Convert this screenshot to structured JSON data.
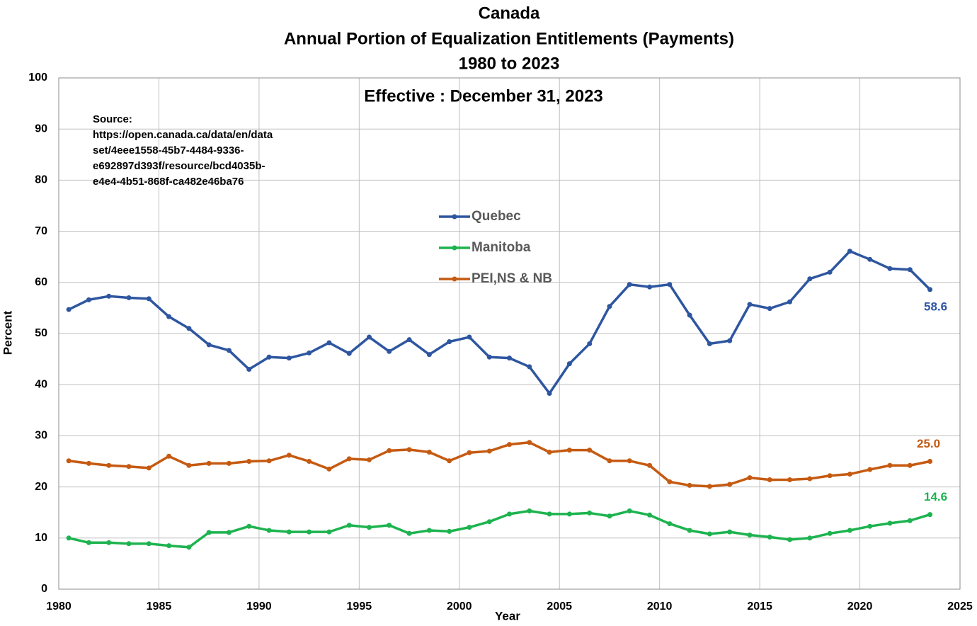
{
  "chart_data": {
    "type": "line",
    "title": [
      "Canada",
      "Annual Portion of Equalization Entitlements (Payments)",
      "1980 to 2023"
    ],
    "subtitle": "Effective : December 31, 2023",
    "source_note": [
      "Source:",
      "https://open.canada.ca/data/en/data",
      "set/4eee1558-45b7-4484-9336-",
      "e692897d393f/resource/bcd4035b-",
      "e4e4-4b51-868f-ca482e46ba76"
    ],
    "x_label": "Year",
    "y_label": "Percent",
    "x": [
      1980.5,
      1981.5,
      1982.5,
      1983.5,
      1984.5,
      1985.5,
      1986.5,
      1987.5,
      1988.5,
      1989.5,
      1990.5,
      1991.5,
      1992.5,
      1993.5,
      1994.5,
      1995.5,
      1996.5,
      1997.5,
      1998.5,
      1999.5,
      2000.5,
      2001.5,
      2002.5,
      2003.5,
      2004.5,
      2005.5,
      2006.5,
      2007.5,
      2008.5,
      2009.5,
      2010.5,
      2011.5,
      2012.5,
      2013.5,
      2014.5,
      2015.5,
      2016.5,
      2017.5,
      2018.5,
      2019.5,
      2020.5,
      2021.5,
      2022.5,
      2023.5
    ],
    "series": [
      {
        "name": "Quebec",
        "color": "#2e56a0",
        "values": [
          54.7,
          56.6,
          57.3,
          57.0,
          56.8,
          53.3,
          51.0,
          47.8,
          46.7,
          43.0,
          45.4,
          45.2,
          46.2,
          48.2,
          46.1,
          49.3,
          46.5,
          48.8,
          45.9,
          48.4,
          49.3,
          45.4,
          45.2,
          43.5,
          38.3,
          44.1,
          48.0,
          55.3,
          59.6,
          59.1,
          59.6,
          53.6,
          48.0,
          48.6,
          55.7,
          54.9,
          56.2,
          60.7,
          62.0,
          66.1,
          64.5,
          62.7,
          62.5,
          58.6
        ],
        "value_labels": [
          null,
          null,
          null,
          null,
          null,
          null,
          null,
          null,
          null,
          null,
          null,
          null,
          null,
          null,
          null,
          null,
          null,
          null,
          null,
          null,
          null,
          null,
          null,
          null,
          null,
          null,
          null,
          null,
          null,
          null,
          null,
          null,
          null,
          null,
          null,
          null,
          null,
          null,
          null,
          null,
          null,
          null,
          null,
          "58.6"
        ]
      },
      {
        "name": "Manitoba",
        "color": "#1db34f",
        "values": [
          10.0,
          9.1,
          9.1,
          8.9,
          8.9,
          8.5,
          8.2,
          11.1,
          11.1,
          12.3,
          11.5,
          11.2,
          11.2,
          11.2,
          12.5,
          12.1,
          12.5,
          10.9,
          11.5,
          11.3,
          12.1,
          13.2,
          14.7,
          15.3,
          14.7,
          14.7,
          14.9,
          14.3,
          15.3,
          14.5,
          12.8,
          11.5,
          10.8,
          11.2,
          10.6,
          10.2,
          9.7,
          10.0,
          10.9,
          11.5,
          12.3,
          12.9,
          13.4,
          14.6
        ],
        "value_labels": [
          null,
          null,
          null,
          null,
          null,
          null,
          null,
          null,
          null,
          null,
          null,
          null,
          null,
          null,
          null,
          null,
          null,
          null,
          null,
          null,
          null,
          null,
          null,
          null,
          null,
          null,
          null,
          null,
          null,
          null,
          null,
          null,
          null,
          null,
          null,
          null,
          null,
          null,
          null,
          null,
          null,
          null,
          null,
          "14.6"
        ]
      },
      {
        "name": "PEI,NS & NB",
        "color": "#c55a11",
        "values": [
          25.1,
          24.6,
          24.2,
          24.0,
          23.7,
          26.0,
          24.2,
          24.6,
          24.6,
          25.0,
          25.1,
          26.2,
          25.0,
          23.5,
          25.5,
          25.3,
          27.1,
          27.3,
          26.8,
          25.1,
          26.7,
          27.0,
          28.3,
          28.7,
          26.8,
          27.2,
          27.2,
          25.1,
          25.1,
          24.2,
          21.0,
          20.3,
          20.1,
          20.5,
          21.8,
          21.4,
          21.4,
          21.6,
          22.2,
          22.5,
          23.4,
          24.2,
          24.2,
          25.0
        ],
        "value_labels": [
          null,
          null,
          null,
          null,
          null,
          null,
          null,
          null,
          null,
          null,
          null,
          null,
          null,
          null,
          null,
          null,
          null,
          null,
          null,
          null,
          null,
          null,
          null,
          null,
          null,
          null,
          null,
          null,
          null,
          null,
          null,
          null,
          null,
          null,
          null,
          null,
          null,
          null,
          null,
          null,
          null,
          null,
          null,
          "25.0"
        ]
      }
    ],
    "xlim": [
      1980,
      2025
    ],
    "xticks": [
      1980,
      1985,
      1990,
      1995,
      2000,
      2005,
      2010,
      2015,
      2020,
      2025
    ],
    "ylim": [
      0,
      100
    ],
    "yticks": [
      0,
      10,
      20,
      30,
      40,
      50,
      60,
      70,
      80,
      90,
      100
    ],
    "grid": true,
    "legend": "center"
  }
}
